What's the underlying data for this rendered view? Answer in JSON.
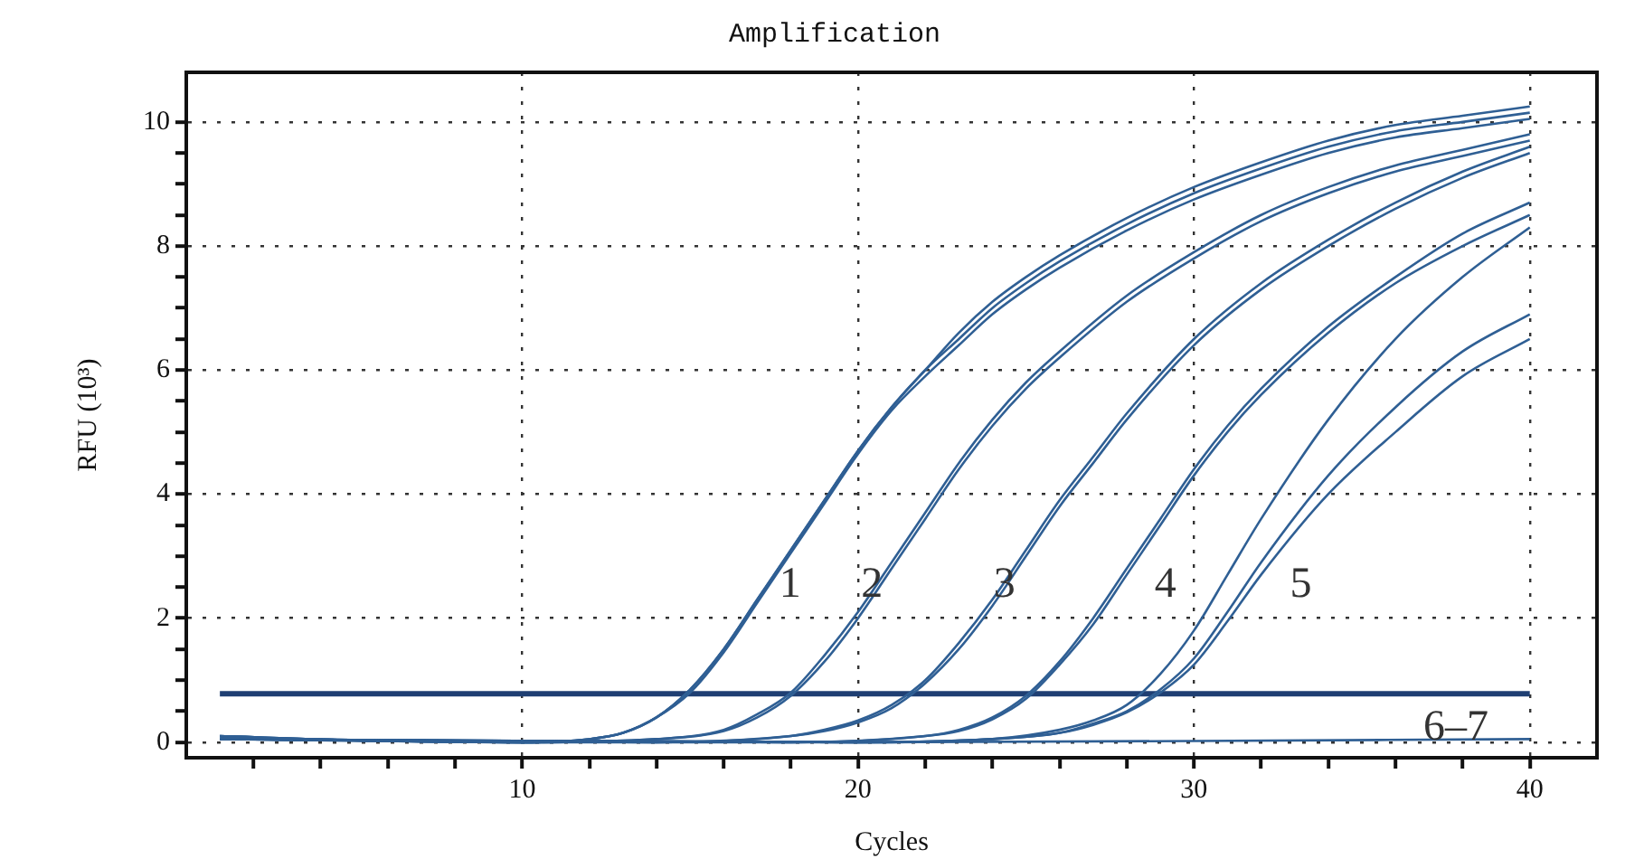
{
  "chart_data": {
    "type": "line",
    "title": "Amplification",
    "xlabel": "Cycles",
    "ylabel": "RFU (10³)",
    "xlim": [
      0,
      42
    ],
    "ylim": [
      -0.25,
      10.8
    ],
    "xticks": [
      {
        "value": 2,
        "label": null
      },
      {
        "value": 4,
        "label": null
      },
      {
        "value": 6,
        "label": null
      },
      {
        "value": 8,
        "label": null
      },
      10,
      {
        "value": 12,
        "label": null
      },
      {
        "value": 14,
        "label": null
      },
      {
        "value": 16,
        "label": null
      },
      {
        "value": 18,
        "label": null
      },
      20,
      {
        "value": 22,
        "label": null
      },
      {
        "value": 24,
        "label": null
      },
      {
        "value": 26,
        "label": null
      },
      {
        "value": 28,
        "label": null
      },
      30,
      {
        "value": 32,
        "label": null
      },
      {
        "value": 34,
        "label": null
      },
      {
        "value": 36,
        "label": null
      },
      {
        "value": 38,
        "label": null
      },
      40
    ],
    "yticks": [
      0,
      {
        "value": 0.5,
        "label": null
      },
      {
        "value": 1,
        "label": null
      },
      {
        "value": 1.5,
        "label": null
      },
      2,
      {
        "value": 2.5,
        "label": null
      },
      {
        "value": 3,
        "label": null
      },
      {
        "value": 3.5,
        "label": null
      },
      4,
      {
        "value": 4.5,
        "label": null
      },
      {
        "value": 5,
        "label": null
      },
      {
        "value": 5.5,
        "label": null
      },
      6,
      {
        "value": 6.5,
        "label": null
      },
      {
        "value": 7,
        "label": null
      },
      {
        "value": 7.5,
        "label": null
      },
      8,
      {
        "value": 8.5,
        "label": null
      },
      {
        "value": 9,
        "label": null
      },
      {
        "value": 9.5,
        "label": null
      },
      10
    ],
    "grid": true,
    "legend": false,
    "marker": "none",
    "line_style": "solid",
    "ref_lines": [
      {
        "axis": "y",
        "value": 0.78,
        "label": null,
        "color": "#1f3f73"
      }
    ],
    "annotations": [
      "1",
      "2",
      "3",
      "4",
      "5",
      "6–7"
    ],
    "series": [
      {
        "color": "#2f5f94",
        "x": [
          1,
          5,
          10,
          12,
          13,
          14,
          15,
          16,
          17,
          18,
          19,
          20,
          21,
          22,
          23,
          24,
          25,
          26,
          28,
          30,
          32,
          34,
          36,
          38,
          40
        ],
        "values": [
          0.1,
          0.03,
          0,
          0.05,
          0.15,
          0.4,
          0.85,
          1.5,
          2.3,
          3.1,
          3.9,
          4.7,
          5.4,
          6.0,
          6.6,
          7.1,
          7.5,
          7.85,
          8.45,
          8.95,
          9.35,
          9.7,
          9.95,
          10.1,
          10.25
        ]
      },
      {
        "color": "#2f5f94",
        "x": [
          1,
          5,
          10,
          12,
          13,
          14,
          15,
          16,
          17,
          18,
          19,
          20,
          21,
          22,
          23,
          24,
          25,
          26,
          28,
          30,
          32,
          34,
          36,
          38,
          40
        ],
        "values": [
          0.1,
          0.03,
          0,
          0.05,
          0.15,
          0.4,
          0.85,
          1.5,
          2.3,
          3.1,
          3.9,
          4.7,
          5.4,
          6.0,
          6.5,
          7.0,
          7.4,
          7.75,
          8.35,
          8.85,
          9.25,
          9.6,
          9.85,
          10.0,
          10.15
        ]
      },
      {
        "color": "#2f5f94",
        "x": [
          1,
          5,
          10,
          12,
          13,
          14,
          15,
          16,
          17,
          18,
          19,
          20,
          21,
          22,
          23,
          24,
          25,
          26,
          28,
          30,
          32,
          34,
          36,
          38,
          40
        ],
        "values": [
          0.1,
          0.03,
          0,
          0.05,
          0.15,
          0.4,
          0.8,
          1.45,
          2.25,
          3.05,
          3.85,
          4.65,
          5.35,
          5.9,
          6.4,
          6.9,
          7.3,
          7.65,
          8.25,
          8.75,
          9.15,
          9.5,
          9.75,
          9.9,
          10.05
        ]
      },
      {
        "color": "#2f5f94",
        "x": [
          1,
          10,
          14,
          16,
          17,
          18,
          19,
          20,
          21,
          22,
          23,
          24,
          25,
          26,
          28,
          30,
          32,
          34,
          36,
          38,
          40
        ],
        "values": [
          0.05,
          0,
          0.05,
          0.2,
          0.45,
          0.8,
          1.4,
          2.1,
          2.9,
          3.7,
          4.5,
          5.2,
          5.8,
          6.3,
          7.2,
          7.9,
          8.5,
          8.95,
          9.3,
          9.55,
          9.8
        ]
      },
      {
        "color": "#2f5f94",
        "x": [
          1,
          10,
          14,
          16,
          17,
          18,
          19,
          20,
          21,
          22,
          23,
          24,
          25,
          26,
          28,
          30,
          32,
          34,
          36,
          38,
          40
        ],
        "values": [
          0.05,
          0,
          0.05,
          0.18,
          0.4,
          0.75,
          1.3,
          2.0,
          2.8,
          3.6,
          4.4,
          5.1,
          5.7,
          6.2,
          7.1,
          7.8,
          8.4,
          8.85,
          9.2,
          9.45,
          9.7
        ]
      },
      {
        "color": "#2f5f94",
        "x": [
          1,
          14,
          18,
          19,
          20,
          21,
          22,
          23,
          24,
          25,
          26,
          27,
          28,
          30,
          32,
          34,
          36,
          38,
          40
        ],
        "values": [
          0.05,
          0,
          0.1,
          0.2,
          0.35,
          0.6,
          1.0,
          1.6,
          2.3,
          3.1,
          3.9,
          4.6,
          5.3,
          6.5,
          7.4,
          8.1,
          8.7,
          9.2,
          9.6
        ]
      },
      {
        "color": "#2f5f94",
        "x": [
          1,
          14,
          18,
          19,
          20,
          21,
          22,
          23,
          24,
          25,
          26,
          27,
          28,
          30,
          32,
          34,
          36,
          38,
          40
        ],
        "values": [
          0.05,
          0,
          0.1,
          0.18,
          0.32,
          0.55,
          0.95,
          1.5,
          2.2,
          3.0,
          3.8,
          4.5,
          5.2,
          6.4,
          7.3,
          8.0,
          8.6,
          9.1,
          9.5
        ]
      },
      {
        "color": "#2f5f94",
        "x": [
          1,
          18,
          22,
          23,
          24,
          25,
          26,
          27,
          28,
          29,
          30,
          31,
          32,
          34,
          36,
          38,
          40
        ],
        "values": [
          0.05,
          0,
          0.1,
          0.2,
          0.4,
          0.75,
          1.3,
          2.0,
          2.8,
          3.6,
          4.4,
          5.1,
          5.7,
          6.7,
          7.5,
          8.2,
          8.7
        ]
      },
      {
        "color": "#2f5f94",
        "x": [
          1,
          18,
          22,
          23,
          24,
          25,
          26,
          27,
          28,
          29,
          30,
          31,
          32,
          34,
          36,
          38,
          40
        ],
        "values": [
          0.05,
          0,
          0.1,
          0.18,
          0.37,
          0.7,
          1.25,
          1.9,
          2.7,
          3.5,
          4.3,
          5.0,
          5.6,
          6.6,
          7.4,
          8.0,
          8.5
        ]
      },
      {
        "color": "#2f5f94",
        "x": [
          1,
          20,
          24,
          26,
          27,
          28,
          29,
          30,
          31,
          32,
          34,
          36,
          38,
          40
        ],
        "values": [
          0.05,
          0,
          0.05,
          0.2,
          0.35,
          0.6,
          1.1,
          1.8,
          2.7,
          3.6,
          5.2,
          6.5,
          7.5,
          8.3
        ]
      },
      {
        "color": "#2f5f94",
        "x": [
          1,
          20,
          24,
          26,
          27,
          28,
          29,
          30,
          31,
          32,
          34,
          36,
          38,
          40
        ],
        "values": [
          0.05,
          0,
          0.05,
          0.15,
          0.3,
          0.5,
          0.85,
          1.35,
          2.1,
          2.9,
          4.3,
          5.4,
          6.3,
          6.9
        ]
      },
      {
        "color": "#2f5f94",
        "x": [
          1,
          20,
          24,
          26,
          27,
          28,
          29,
          30,
          31,
          32,
          34,
          36,
          38,
          40
        ],
        "values": [
          0.05,
          0,
          0.05,
          0.15,
          0.28,
          0.48,
          0.8,
          1.25,
          1.95,
          2.7,
          4.0,
          5.0,
          5.9,
          6.5
        ]
      },
      {
        "color": "#2f5f94",
        "x": [
          1,
          10,
          20,
          30,
          40
        ],
        "values": [
          0.08,
          0,
          0,
          0.02,
          0.05
        ]
      }
    ]
  }
}
